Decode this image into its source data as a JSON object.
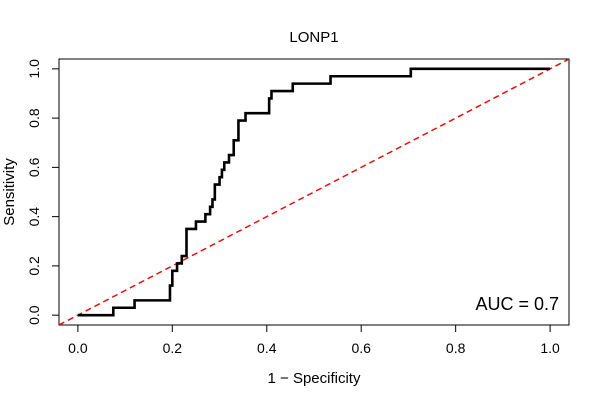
{
  "chart_data": {
    "type": "line",
    "title": "LONP1",
    "xlabel": "1 − Specificity",
    "ylabel": "Sensitivity",
    "xlim": [
      -0.04,
      1.04
    ],
    "ylim": [
      -0.04,
      1.04
    ],
    "x_ticks": [
      "0.0",
      "0.2",
      "0.4",
      "0.6",
      "0.8",
      "1.0"
    ],
    "y_ticks": [
      "0.0",
      "0.2",
      "0.4",
      "0.6",
      "0.8",
      "1.0"
    ],
    "x_tick_values": [
      0,
      0.2,
      0.4,
      0.6,
      0.8,
      1.0
    ],
    "y_tick_values": [
      0,
      0.2,
      0.4,
      0.6,
      0.8,
      1.0
    ],
    "annotation": "AUC = 0.7",
    "grid": false,
    "series": [
      {
        "color": "#000000",
        "style": "solid",
        "x": [
          0.0,
          0.075,
          0.075,
          0.12,
          0.12,
          0.195,
          0.195,
          0.2,
          0.2,
          0.21,
          0.21,
          0.22,
          0.22,
          0.23,
          0.23,
          0.235,
          0.235,
          0.25,
          0.25,
          0.27,
          0.27,
          0.28,
          0.28,
          0.285,
          0.285,
          0.29,
          0.29,
          0.3,
          0.3,
          0.305,
          0.305,
          0.31,
          0.31,
          0.32,
          0.32,
          0.33,
          0.33,
          0.34,
          0.34,
          0.355,
          0.355,
          0.405,
          0.405,
          0.41,
          0.41,
          0.455,
          0.455,
          0.535,
          0.535,
          0.705,
          0.705,
          1.0
        ],
        "y": [
          0.0,
          0.0,
          0.03,
          0.03,
          0.06,
          0.06,
          0.12,
          0.12,
          0.18,
          0.18,
          0.21,
          0.21,
          0.24,
          0.24,
          0.35,
          0.35,
          0.35,
          0.35,
          0.38,
          0.38,
          0.41,
          0.41,
          0.44,
          0.44,
          0.47,
          0.47,
          0.53,
          0.53,
          0.56,
          0.56,
          0.59,
          0.59,
          0.62,
          0.62,
          0.65,
          0.65,
          0.71,
          0.71,
          0.79,
          0.79,
          0.82,
          0.82,
          0.88,
          0.88,
          0.91,
          0.91,
          0.94,
          0.94,
          0.97,
          0.97,
          1.0,
          1.0
        ]
      },
      {
        "color": "#ff0000",
        "style": "dashed",
        "x": [
          -0.04,
          1.04
        ],
        "y": [
          -0.04,
          1.04
        ]
      }
    ]
  }
}
